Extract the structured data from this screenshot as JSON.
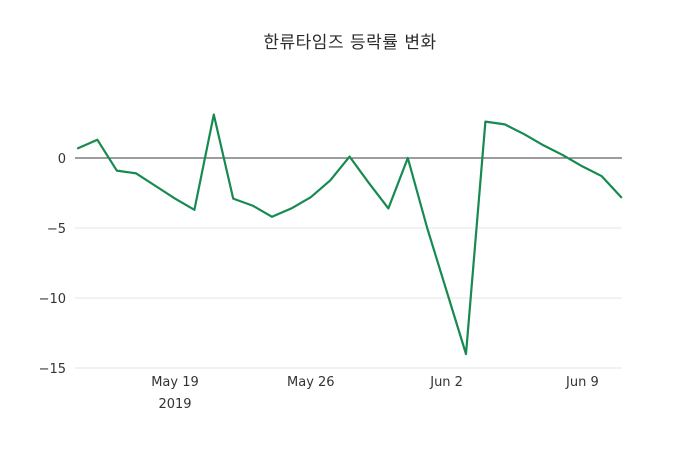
{
  "title": "한류타임즈 등락률 변화",
  "chart_data": {
    "type": "line",
    "title": "한류타임즈 등락률 변화",
    "series_name": "등락률",
    "x": [
      "May 14",
      "May 15",
      "May 16",
      "May 17",
      "May 18",
      "May 19",
      "May 20",
      "May 21",
      "May 22",
      "May 23",
      "May 24",
      "May 25",
      "May 26",
      "May 27",
      "May 28",
      "May 29",
      "May 30",
      "May 31",
      "Jun 1",
      "Jun 2",
      "Jun 3",
      "Jun 4",
      "Jun 5",
      "Jun 6",
      "Jun 7",
      "Jun 8",
      "Jun 9",
      "Jun 10",
      "Jun 11"
    ],
    "values": [
      0.7,
      1.3,
      -0.9,
      -1.1,
      -2.0,
      -2.9,
      -3.7,
      3.1,
      -2.9,
      -3.4,
      -4.2,
      -3.6,
      -2.8,
      -1.6,
      0.1,
      -1.8,
      -3.6,
      0.0,
      -5.0,
      -9.5,
      -14.0,
      2.6,
      2.4,
      1.7,
      0.9,
      0.2,
      -0.6,
      -1.3,
      -2.8
    ],
    "ylim": [
      -15.5,
      4
    ],
    "yticks": [
      0,
      -5,
      -10,
      -15
    ],
    "ytick_labels": [
      "0",
      "−5",
      "−10",
      "−15"
    ],
    "xticks": [
      {
        "label": "May 19",
        "sub": "2019",
        "index": 5
      },
      {
        "label": "May 26",
        "sub": "",
        "index": 12
      },
      {
        "label": "Jun 2",
        "sub": "",
        "index": 19
      },
      {
        "label": "Jun 9",
        "sub": "",
        "index": 26
      }
    ],
    "grid": "horizontal",
    "zero_line": true,
    "line_color": "#178a50",
    "grid_color": "#e6e6e6",
    "zero_line_color": "#3b3b3b",
    "tick_color": "#333333",
    "background": "#ffffff"
  }
}
